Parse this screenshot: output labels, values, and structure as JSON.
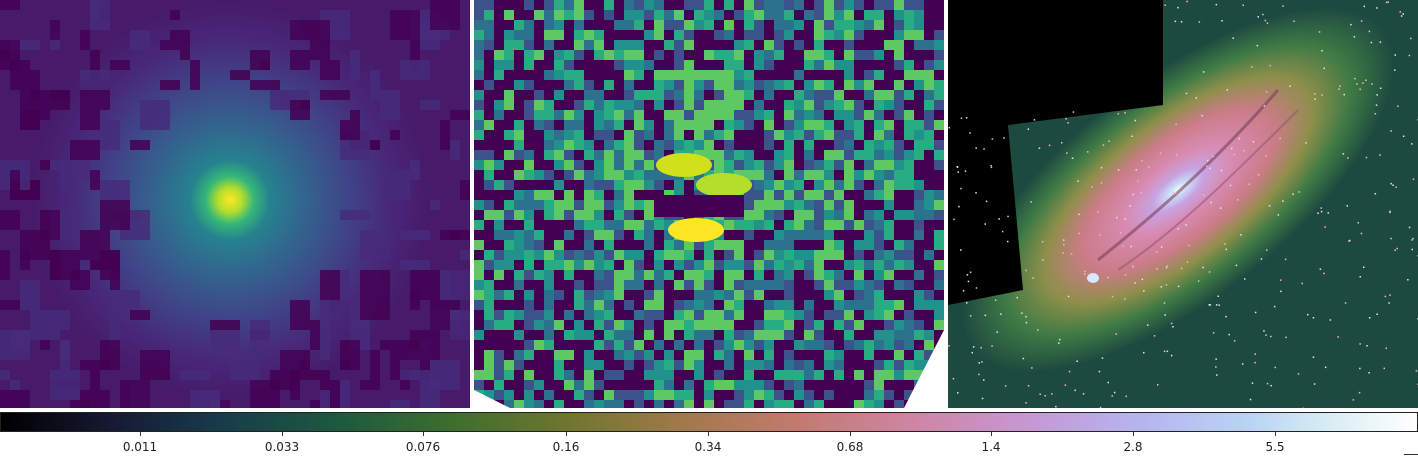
{
  "colorbar": {
    "scale": "log",
    "colormap": "cubehelix",
    "ticks": [
      "0.011",
      "0.033",
      "0.076",
      "0.16",
      "0.34",
      "0.68",
      "1.4",
      "2.8",
      "5.5"
    ]
  },
  "panels": [
    {
      "name": "psf-source-panel",
      "colormap": "viridis",
      "content": "bright compact source, diffuse halo"
    },
    {
      "name": "residual-panel",
      "colormap": "viridis",
      "content": "noisy residual with cross pattern"
    },
    {
      "name": "galaxy-panel",
      "colormap": "cubehelix",
      "content": "inclined spiral galaxy with dust lanes"
    }
  ],
  "colors": {
    "viridis_low": "#440154",
    "viridis_mid": "#21918c",
    "viridis_high": "#fde725"
  }
}
